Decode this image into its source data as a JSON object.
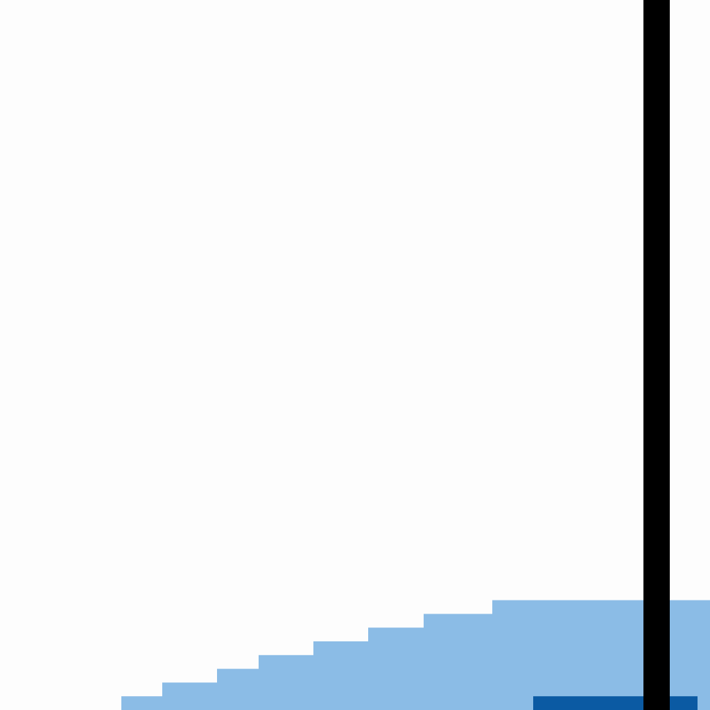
{
  "chart_data": {
    "type": "area",
    "title": "",
    "xlabel": "",
    "ylabel": "",
    "grid": false,
    "legend": "none",
    "colors": {
      "light_series": "#8bbce6",
      "dark_series": "#0b5aa3",
      "marker_line": "#000000",
      "background": "#fdfdfd"
    },
    "series": [
      {
        "style": "light-step",
        "steps": [
          {
            "x0": 175,
            "x1": 234,
            "level": 1
          },
          {
            "x0": 234,
            "x1": 313,
            "level": 2
          },
          {
            "x0": 313,
            "x1": 373,
            "level": 3
          },
          {
            "x0": 373,
            "x1": 452,
            "level": 4
          },
          {
            "x0": 452,
            "x1": 531,
            "level": 5
          },
          {
            "x0": 531,
            "x1": 611,
            "level": 6
          },
          {
            "x0": 611,
            "x1": 710,
            "level": 7
          },
          {
            "x0": 710,
            "x1": 1024,
            "level": 8
          }
        ]
      },
      {
        "style": "dark-step",
        "steps": [
          {
            "x0": 769,
            "x1": 1006,
            "level": 1
          }
        ]
      }
    ],
    "marker_x": 947
  }
}
